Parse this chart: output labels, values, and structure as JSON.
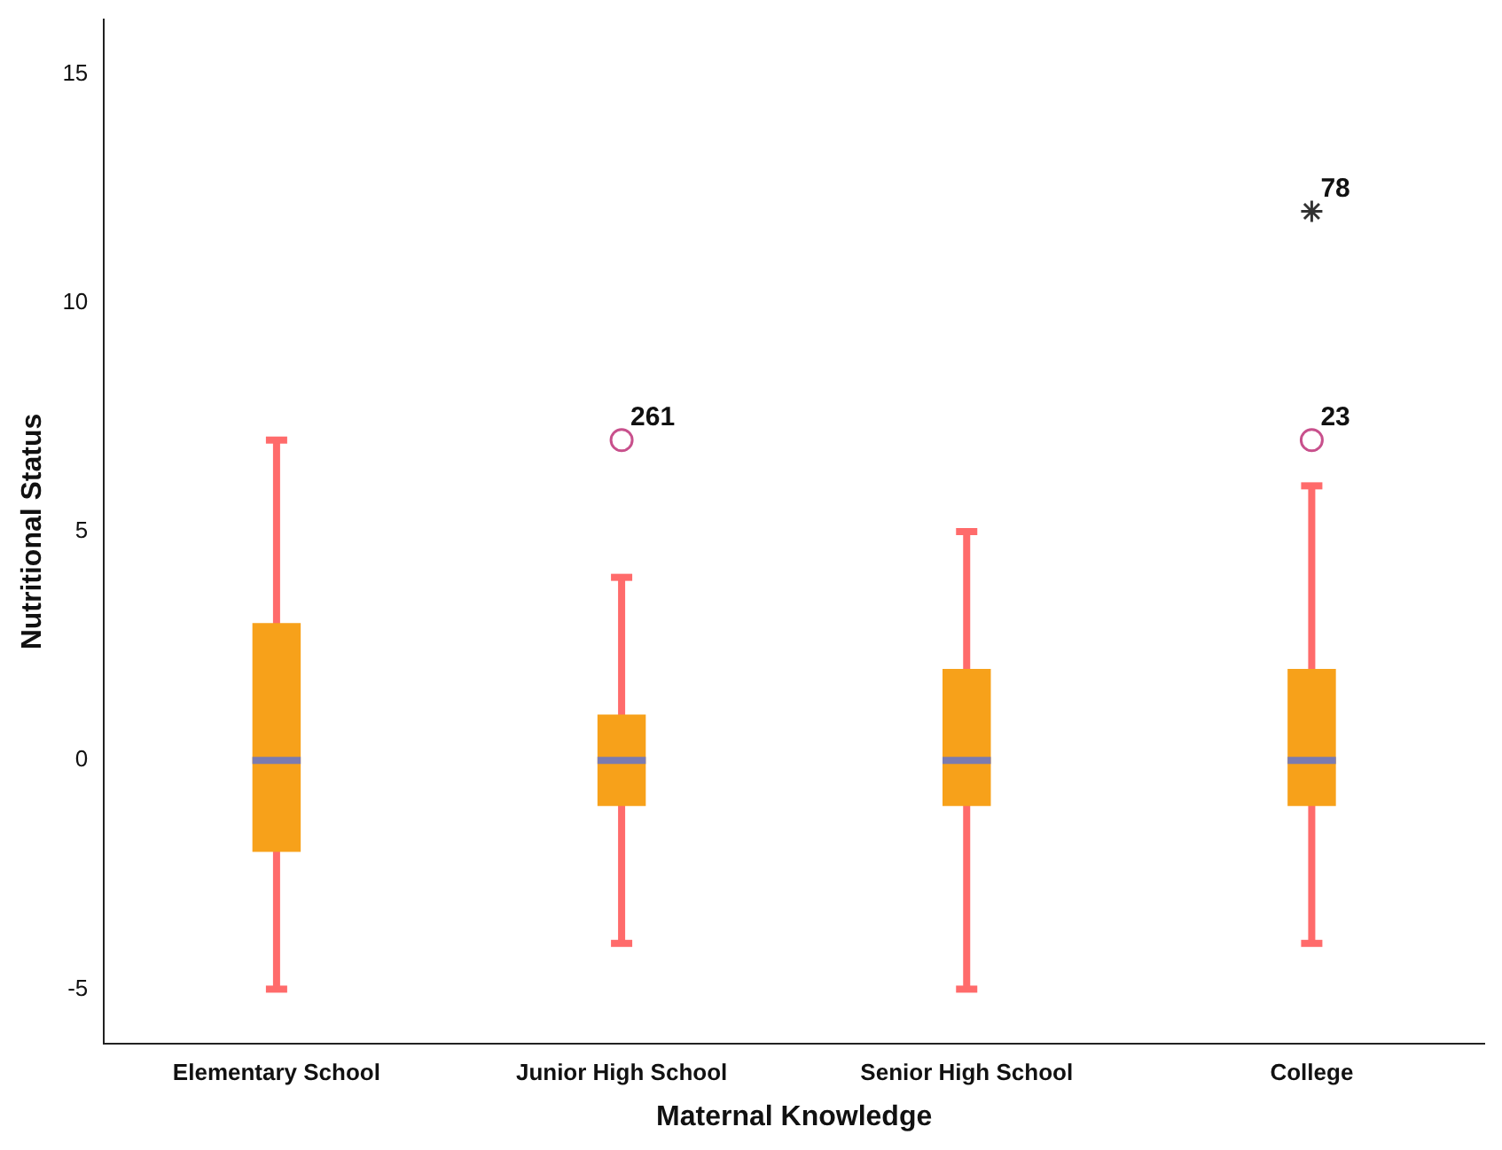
{
  "chart_data": {
    "type": "box",
    "xlabel": "Maternal Knowledge",
    "ylabel": "Nutritional Status",
    "categories": [
      "Elementary School",
      "Junior High School",
      "Senior High School",
      "College"
    ],
    "boxes": [
      {
        "low": -5,
        "q1": -2,
        "median": 0,
        "q3": 3,
        "high": 7
      },
      {
        "low": -4,
        "q1": -1,
        "median": 0,
        "q3": 1,
        "high": 4,
        "outliers": [
          7
        ]
      },
      {
        "low": -5,
        "q1": -1,
        "median": 0,
        "q3": 2,
        "high": 5
      },
      {
        "low": -4,
        "q1": -1,
        "median": 0,
        "q3": 2,
        "high": 6,
        "outliers": [
          7,
          12
        ]
      }
    ],
    "color": "#f7a11a",
    "ylim": [
      -6.2,
      16.2
    ],
    "yticks": [
      -5,
      0,
      5,
      10,
      15
    ],
    "grid": false,
    "legend": false,
    "annotations": [
      "261",
      "23",
      "78"
    ]
  }
}
